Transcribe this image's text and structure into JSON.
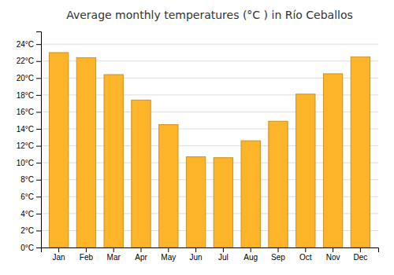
{
  "chart_data": {
    "type": "bar",
    "title": "Average monthly temperatures (°C ) in Río Ceballos",
    "categories": [
      "Jan",
      "Feb",
      "Mar",
      "Apr",
      "May",
      "Jun",
      "Jul",
      "Aug",
      "Sep",
      "Oct",
      "Nov",
      "Dec"
    ],
    "values": [
      23.0,
      22.4,
      20.4,
      17.4,
      14.5,
      10.7,
      10.6,
      12.6,
      14.9,
      18.1,
      20.5,
      22.5
    ],
    "color": "#FDB429",
    "ylim": [
      0,
      25.5
    ],
    "yticks": [
      {
        "value": 0,
        "label": "0°C"
      },
      {
        "value": 2,
        "label": "2°C"
      },
      {
        "value": 4,
        "label": "4°C"
      },
      {
        "value": 6,
        "label": "6°C"
      },
      {
        "value": 8,
        "label": "8°C"
      },
      {
        "value": 10,
        "label": "10°C"
      },
      {
        "value": 12,
        "label": "12°C"
      },
      {
        "value": 14,
        "label": "14°C"
      },
      {
        "value": 16,
        "label": "16°C"
      },
      {
        "value": 18,
        "label": "18°C"
      },
      {
        "value": 20,
        "label": "20°C"
      },
      {
        "value": 22,
        "label": "22°C"
      },
      {
        "value": 24,
        "label": "24°C"
      }
    ],
    "grid": true
  }
}
